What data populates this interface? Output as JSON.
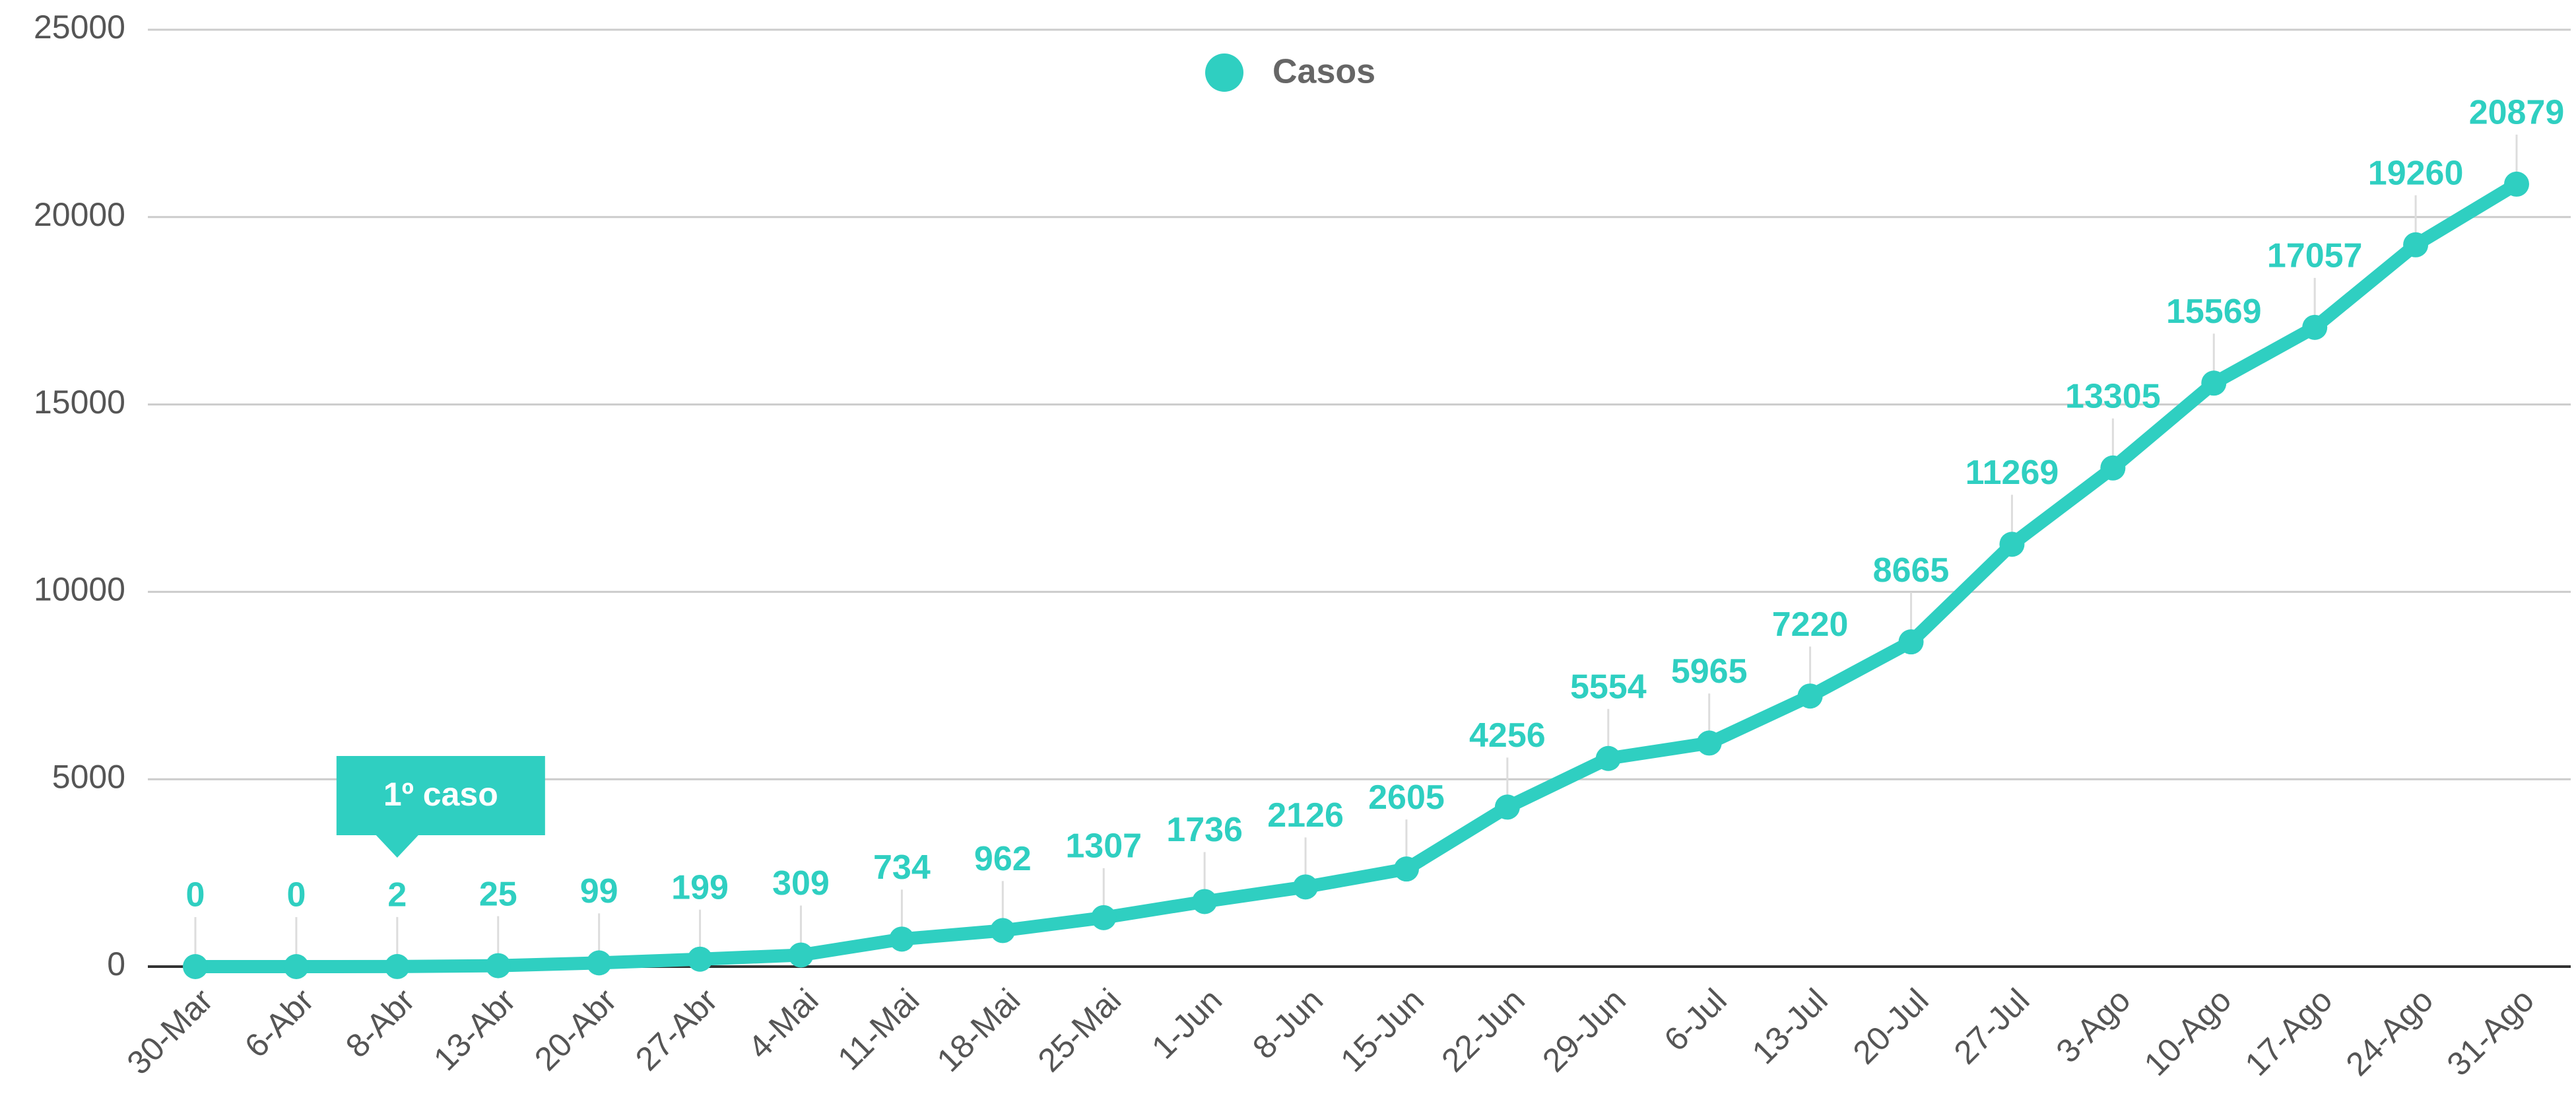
{
  "chart_data": {
    "type": "line",
    "categories": [
      "30-Mar",
      "6-Abr",
      "8-Abr",
      "13-Abr",
      "20-Abr",
      "27-Abr",
      "4-Mai",
      "11-Mai",
      "18-Mai",
      "25-Mai",
      "1-Jun",
      "8-Jun",
      "15-Jun",
      "22-Jun",
      "29-Jun",
      "6-Jul",
      "13-Jul",
      "20-Jul",
      "27-Jul",
      "3-Ago",
      "10-Ago",
      "17-Ago",
      "24-Ago",
      "31-Ago"
    ],
    "series": [
      {
        "name": "Casos",
        "color": "#2fcfc1",
        "values": [
          0,
          0,
          2,
          25,
          99,
          199,
          309,
          734,
          962,
          1307,
          1736,
          2126,
          2605,
          4256,
          5554,
          5965,
          7220,
          8665,
          11269,
          13305,
          15569,
          17057,
          19260,
          20879
        ]
      }
    ],
    "ylim": [
      0,
      25000
    ],
    "yticks": [
      0,
      5000,
      10000,
      15000,
      20000,
      25000
    ],
    "grid": true,
    "legend": "top",
    "annotations": [
      {
        "text": "1º caso",
        "category": 2
      }
    ]
  }
}
